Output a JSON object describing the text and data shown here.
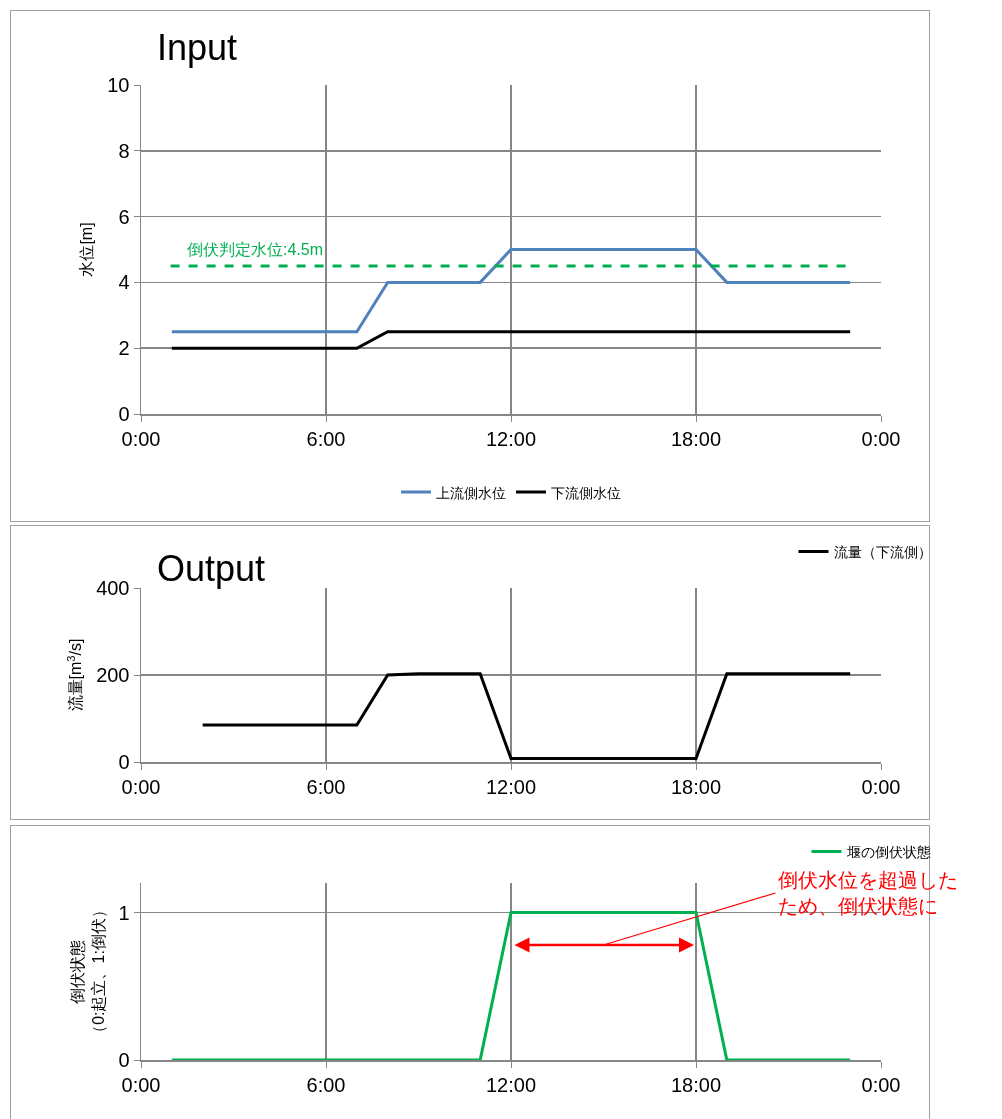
{
  "chart_data": [
    {
      "type": "line",
      "title": "Input",
      "ylabel": "水位[m]",
      "xlim": [
        0,
        24
      ],
      "xticks": [
        {
          "value": 0,
          "label": "0:00"
        },
        {
          "value": 6,
          "label": "6:00"
        },
        {
          "value": 12,
          "label": "12:00"
        },
        {
          "value": 18,
          "label": "18:00"
        },
        {
          "value": 24,
          "label": "0:00"
        }
      ],
      "ylim": [
        0,
        10
      ],
      "yticks": [
        0,
        2,
        4,
        6,
        8,
        10
      ],
      "grid": true,
      "legend": "bottom",
      "marker": "none",
      "line_style": "solid",
      "series": [
        {
          "name": "上流側水位",
          "color": "#4f81bd",
          "x": [
            1,
            7,
            8,
            11,
            12,
            18,
            19,
            23
          ],
          "values": [
            2.5,
            2.5,
            4,
            4,
            5,
            5,
            4,
            4
          ]
        },
        {
          "name": "下流側水位",
          "color": "#000000",
          "x": [
            1,
            7,
            8,
            23
          ],
          "values": [
            2,
            2,
            2.5,
            2.5
          ]
        }
      ],
      "ref_lines": [
        {
          "axis": "y",
          "value": 4.5,
          "label": "倒伏判定水位:4.5m",
          "color": "#00b050",
          "line_style": "dashed"
        }
      ]
    },
    {
      "type": "line",
      "title": "Output",
      "ylabel": "流量[m$^{3}$/s]",
      "xlim": [
        0,
        24
      ],
      "xticks": [
        {
          "value": 0,
          "label": "0:00"
        },
        {
          "value": 6,
          "label": "6:00"
        },
        {
          "value": 12,
          "label": "12:00"
        },
        {
          "value": 18,
          "label": "18:00"
        },
        {
          "value": 24,
          "label": "0:00"
        }
      ],
      "ylim": [
        0,
        400
      ],
      "yticks": [
        0,
        200,
        400
      ],
      "grid": true,
      "legend": "top right",
      "marker": "none",
      "line_style": "solid",
      "series": [
        {
          "name": "流量（下流側）",
          "color": "#000000",
          "x": [
            2,
            7,
            8,
            9,
            11,
            12,
            18,
            19,
            23
          ],
          "values": [
            85,
            85,
            200,
            203,
            203,
            8,
            8,
            203,
            203
          ]
        }
      ]
    },
    {
      "type": "line",
      "ylabel": "倒伏状態（0:起立、1:倒伏）",
      "xlim": [
        0,
        24
      ],
      "xticks": [
        {
          "value": 0,
          "label": "0:00"
        },
        {
          "value": 6,
          "label": "6:00"
        },
        {
          "value": 12,
          "label": "12:00"
        },
        {
          "value": 18,
          "label": "18:00"
        },
        {
          "value": 24,
          "label": "0:00"
        }
      ],
      "ylim": [
        0,
        1.2
      ],
      "yticks": [
        0,
        1
      ],
      "grid": true,
      "legend": "top right",
      "marker": "none",
      "line_style": "solid",
      "series": [
        {
          "name": "堰の倒伏状態",
          "color": "#00b050",
          "x": [
            1,
            11,
            12,
            18,
            19,
            23
          ],
          "values": [
            0,
            0,
            1,
            1,
            0,
            0
          ]
        }
      ],
      "annotations": [
        "倒伏水位を超過したため、倒伏状態に"
      ]
    }
  ]
}
